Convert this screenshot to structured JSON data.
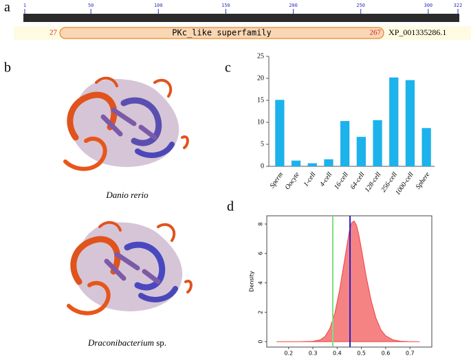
{
  "panel_labels": [
    "a",
    "b",
    "c",
    "d"
  ],
  "domain_map": {
    "xlim": [
      1,
      322
    ],
    "xticks": [
      1,
      50,
      100,
      150,
      200,
      250,
      300,
      322
    ],
    "domain": {
      "name": "PKc_like superfamily",
      "start": 27,
      "end": 267
    },
    "accession": "XP_001335286.1"
  },
  "structures": [
    {
      "species": "Danio rerio"
    },
    {
      "species": "Draconibacterium",
      "suffix": " sp."
    }
  ],
  "chart_data": [
    {
      "type": "bar",
      "categories": [
        "Sperm",
        "Oocyte",
        "1-cell",
        "4-cell",
        "16-cell",
        "64-cell",
        "128-cell",
        "256-cell",
        "1000-cell",
        "Sphere"
      ],
      "values": [
        15.1,
        1.3,
        0.7,
        1.6,
        10.3,
        6.7,
        10.5,
        20.2,
        19.6,
        8.7
      ],
      "color": "#1cb2ec",
      "ylim": [
        0,
        25
      ],
      "yticks": [
        0,
        5,
        10,
        15,
        20,
        25
      ]
    },
    {
      "type": "area",
      "y_label": "Density",
      "x": [
        0.15,
        0.25,
        0.3,
        0.33,
        0.35,
        0.37,
        0.39,
        0.41,
        0.43,
        0.44,
        0.45,
        0.46,
        0.47,
        0.48,
        0.49,
        0.5,
        0.52,
        0.54,
        0.56,
        0.58,
        0.6,
        0.63,
        0.66,
        0.7,
        0.74
      ],
      "y": [
        0,
        0,
        0.02,
        0.12,
        0.35,
        0.9,
        1.9,
        3.5,
        5.5,
        6.5,
        7.5,
        8.1,
        8.2,
        7.9,
        7.2,
        6.3,
        4.4,
        2.8,
        1.6,
        0.8,
        0.4,
        0.12,
        0.03,
        0,
        0
      ],
      "color": "#f04040",
      "xlim": [
        0.11,
        0.79
      ],
      "ylim": [
        -0.37,
        8.56
      ],
      "xticks": [
        0.2,
        0.3,
        0.4,
        0.5,
        0.6,
        0.7
      ],
      "yticks": [
        0,
        2,
        4,
        6,
        8
      ],
      "vlines": [
        {
          "x": 0.382,
          "color": "#7ee07e"
        },
        {
          "x": 0.453,
          "color": "#2020c8"
        }
      ]
    }
  ]
}
